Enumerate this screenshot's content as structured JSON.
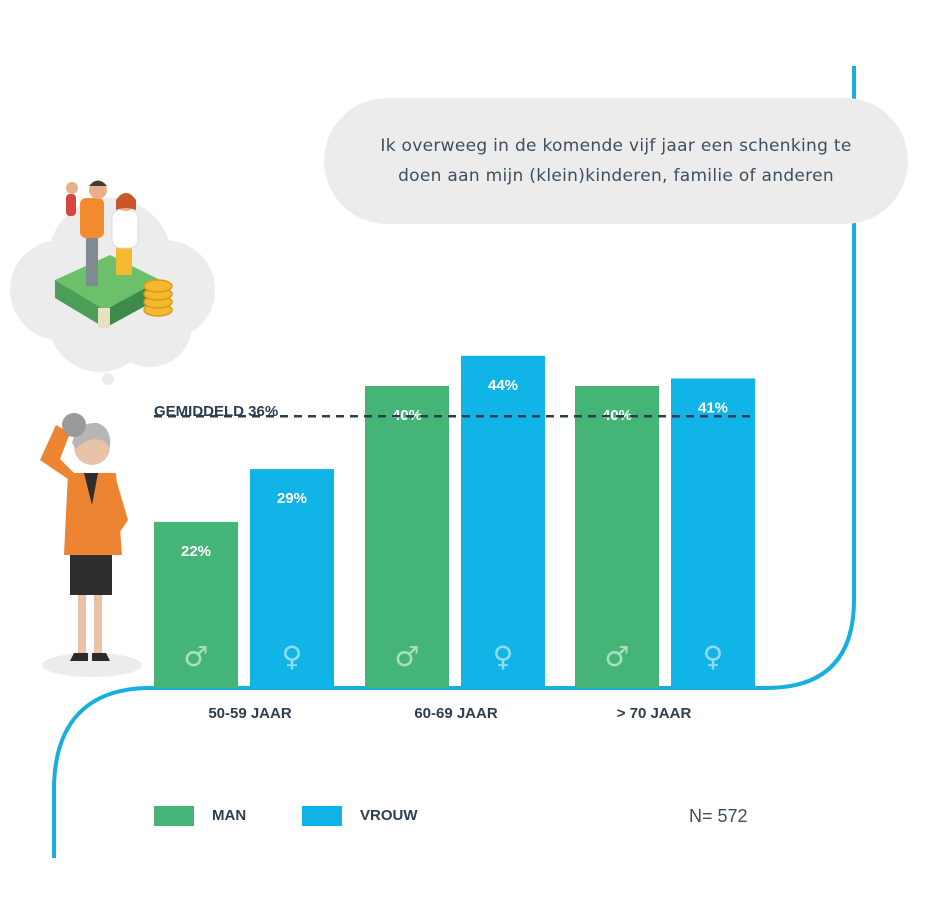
{
  "question": "Ik overweeg in de komende vijf jaar een schenking te doen aan mijn (klein)kinderen, familie of anderen",
  "average_label": "GEMIDDELD 36%",
  "sample_size": "N= 572",
  "colors": {
    "man": "#45b577",
    "vrouw": "#11b4e6",
    "line": "#18aee0",
    "text": "#2c3e50"
  },
  "legend": [
    {
      "label": "MAN",
      "color": "#45b577"
    },
    {
      "label": "VROUW",
      "color": "#11b4e6"
    }
  ],
  "chart_data": {
    "type": "bar",
    "categories": [
      "50-59 JAAR",
      "60-69 JAAR",
      "> 70 JAAR"
    ],
    "series": [
      {
        "name": "MAN",
        "values": [
          22,
          40,
          40
        ],
        "labels": [
          "22%",
          "40%",
          "40%"
        ],
        "symbol": "♂"
      },
      {
        "name": "VROUW",
        "values": [
          29,
          44,
          41
        ],
        "labels": [
          "29%",
          "44%",
          "41%"
        ],
        "symbol": "♀"
      }
    ],
    "average": 36,
    "ylim": [
      0,
      62
    ],
    "grid": false,
    "legend_position": "bottom-left"
  }
}
